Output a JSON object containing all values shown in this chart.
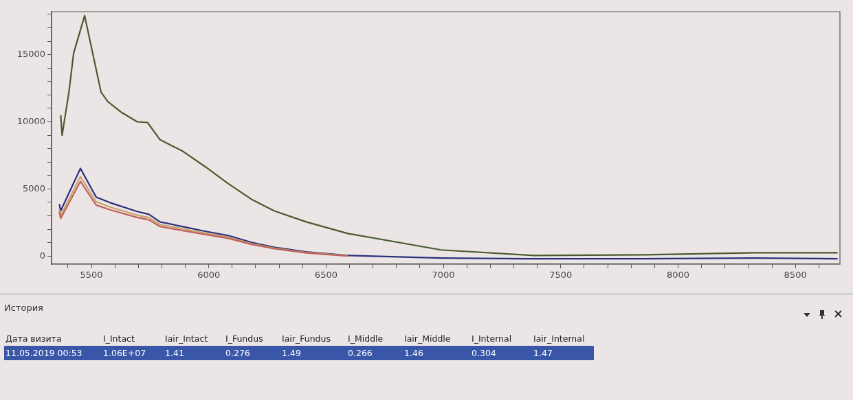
{
  "chart_data": {
    "type": "line",
    "marker": "none",
    "legend": false,
    "grid": false,
    "xlim": [
      5330,
      8690
    ],
    "ylim": [
      -600,
      18200
    ],
    "xticks": [
      {
        "value": 5400,
        "label": null
      },
      5500,
      {
        "value": 5600,
        "label": null
      },
      {
        "value": 5700,
        "label": null
      },
      {
        "value": 5800,
        "label": null
      },
      {
        "value": 5900,
        "label": null
      },
      6000,
      {
        "value": 6100,
        "label": null
      },
      {
        "value": 6200,
        "label": null
      },
      {
        "value": 6300,
        "label": null
      },
      {
        "value": 6400,
        "label": null
      },
      6500,
      {
        "value": 6600,
        "label": null
      },
      {
        "value": 6700,
        "label": null
      },
      {
        "value": 6800,
        "label": null
      },
      {
        "value": 6900,
        "label": null
      },
      7000,
      {
        "value": 7100,
        "label": null
      },
      {
        "value": 7200,
        "label": null
      },
      {
        "value": 7300,
        "label": null
      },
      {
        "value": 7400,
        "label": null
      },
      7500,
      {
        "value": 7600,
        "label": null
      },
      {
        "value": 7700,
        "label": null
      },
      {
        "value": 7800,
        "label": null
      },
      {
        "value": 7900,
        "label": null
      },
      8000,
      {
        "value": 8100,
        "label": null
      },
      {
        "value": 8200,
        "label": null
      },
      {
        "value": 8300,
        "label": null
      },
      {
        "value": 8400,
        "label": null
      },
      8500,
      {
        "value": 8600,
        "label": null
      }
    ],
    "yticks": [
      0,
      {
        "value": 1000,
        "label": null
      },
      {
        "value": 2000,
        "label": null
      },
      {
        "value": 3000,
        "label": null
      },
      {
        "value": 4000,
        "label": null
      },
      5000,
      {
        "value": 6000,
        "label": null
      },
      {
        "value": 7000,
        "label": null
      },
      {
        "value": 8000,
        "label": null
      },
      {
        "value": 9000,
        "label": null
      },
      10000,
      {
        "value": 11000,
        "label": null
      },
      {
        "value": 12000,
        "label": null
      },
      {
        "value": 13000,
        "label": null
      },
      {
        "value": 14000,
        "label": null
      },
      15000,
      {
        "value": 16000,
        "label": null
      },
      {
        "value": 17000,
        "label": null
      },
      {
        "value": 18000,
        "label": null
      }
    ],
    "series": [
      {
        "color": "#4a5a2e",
        "x": [
          5369,
          5375,
          5404,
          5424,
          5471,
          5541,
          5570,
          5628,
          5695,
          5739,
          5792,
          5890,
          5987,
          6083,
          6182,
          6278,
          6415,
          6593,
          6990,
          7383,
          7858,
          8334,
          8680
        ],
        "values": [
          10500,
          9000,
          12200,
          15100,
          17900,
          12200,
          11500,
          10700,
          10000,
          9950,
          8670,
          7800,
          6630,
          5400,
          4230,
          3370,
          2550,
          1680,
          460,
          50,
          100,
          250,
          250
        ]
      },
      {
        "color": "#c0605a",
        "x": [
          5363,
          5369,
          5453,
          5520,
          5579,
          5695,
          5745,
          5792,
          5890,
          5987,
          6083,
          6182,
          6278,
          6415,
          6593
        ],
        "values": [
          3300,
          2800,
          5560,
          3800,
          3450,
          2880,
          2700,
          2200,
          1900,
          1600,
          1320,
          870,
          560,
          240,
          0
        ]
      },
      {
        "color": "#c9a06a",
        "x": [
          5363,
          5369,
          5453,
          5520,
          5579,
          5695,
          5745,
          5792,
          5890,
          5987,
          6083,
          6182,
          6278,
          6415,
          6593
        ],
        "values": [
          3500,
          3000,
          5920,
          4050,
          3650,
          3050,
          2870,
          2350,
          2030,
          1700,
          1400,
          930,
          600,
          270,
          20
        ]
      },
      {
        "color": "#2a2f7a",
        "x": [
          5363,
          5369,
          5453,
          5520,
          5579,
          5695,
          5745,
          5792,
          5890,
          5987,
          6083,
          6182,
          6278,
          6415,
          6593,
          6990,
          7383,
          7858,
          8334,
          8680
        ],
        "values": [
          3880,
          3370,
          6530,
          4390,
          3980,
          3320,
          3110,
          2550,
          2190,
          1840,
          1530,
          1020,
          660,
          310,
          50,
          -150,
          -200,
          -200,
          -150,
          -200
        ]
      }
    ],
    "annotations": [
      "История",
      "Дата визита",
      "I_Intact",
      "Iair_Intact",
      "I_Fundus",
      "Iair_Fundus",
      "I_Middle",
      "Iair_Middle",
      "I_Internal",
      "Iair_Internal",
      "11.05.2019 00:53",
      "1.06E+07",
      "1.41",
      "0.276",
      "1.49",
      "0.266",
      "1.46",
      "0.304",
      "1.47"
    ]
  }
}
